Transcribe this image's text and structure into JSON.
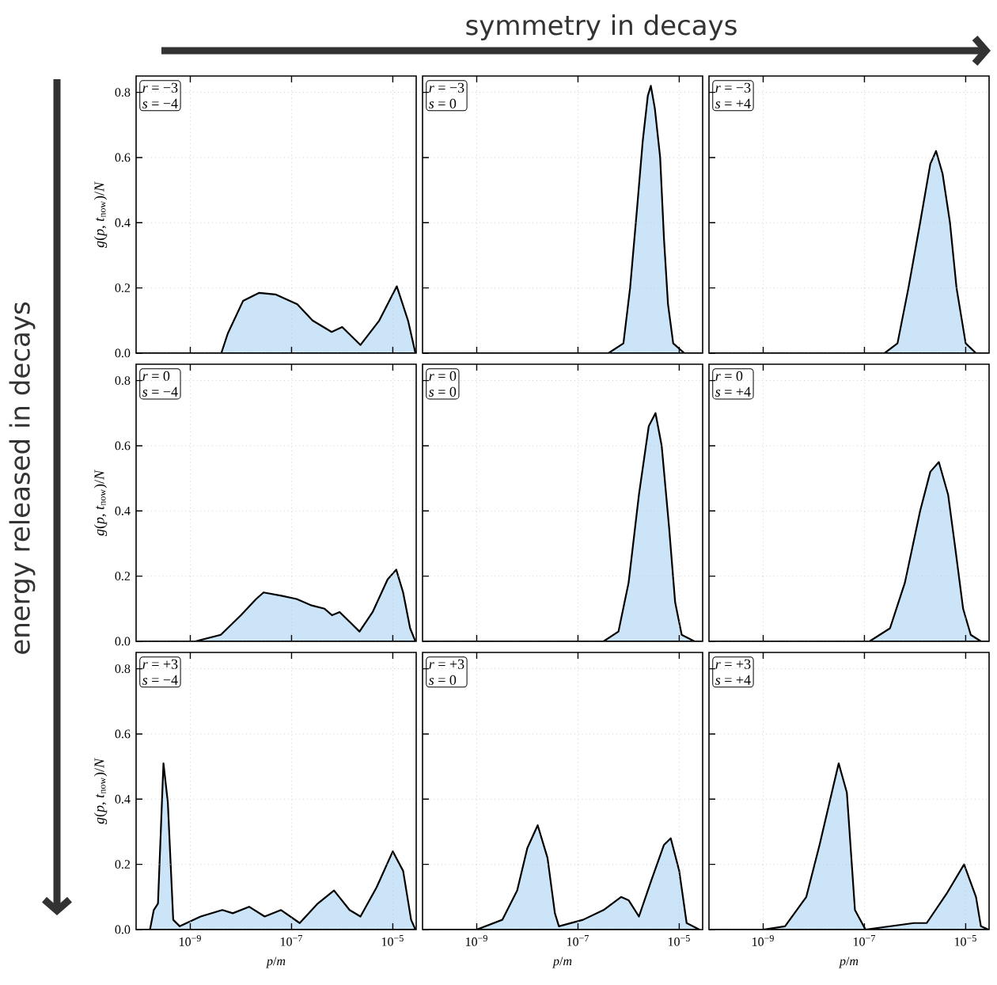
{
  "chart_data": [
    {
      "type": "area",
      "log": "x",
      "grid": true,
      "tick_labels": "y",
      "xlim": [
        8.5e-11,
        2.9e-05
      ],
      "xticks": [
        {
          "value": 1e-09,
          "label": null
        },
        {
          "value": 1e-07,
          "label": null
        },
        {
          "value": 1e-05,
          "label": null
        }
      ],
      "ylim": [
        0,
        0.85
      ],
      "yticks": [
        {
          "value": 0,
          "label": "0.0"
        },
        0.2,
        0.4,
        0.6,
        0.8
      ],
      "ylabel": "*g*(*p*, *t*$_{now}$)/*N*",
      "annotations": [
        "*r* = −3",
        "*s* = −4",
        "symmetry in decays",
        "energy released in decays"
      ],
      "series": [
        {
          "color": "#cce4f7",
          "x": [
            8.5e-11,
            4.1e-09,
            5.5e-09,
            1.1e-08,
            2.3e-08,
            4.8e-08,
            1.3e-07,
            2.6e-07,
            6.2e-07,
            1e-06,
            2.3e-06,
            5.4e-06,
            1.2e-05,
            2e-05,
            2.8e-05
          ],
          "values": [
            0,
            0,
            0.06,
            0.16,
            0.185,
            0.18,
            0.15,
            0.1,
            0.065,
            0.08,
            0.025,
            0.1,
            0.205,
            0.1,
            0
          ]
        }
      ]
    },
    {
      "type": "area",
      "log": "x",
      "grid": true,
      "tick_labels": false,
      "xlim": [
        8.5e-11,
        2.9e-05
      ],
      "xticks": [
        {
          "value": 1e-09,
          "label": null
        },
        {
          "value": 1e-07,
          "label": null
        },
        {
          "value": 1e-05,
          "label": null
        }
      ],
      "ylim": [
        0,
        0.85
      ],
      "yticks": [
        {
          "value": 0,
          "label": null
        },
        {
          "value": 0.2,
          "label": null
        },
        {
          "value": 0.4,
          "label": null
        },
        {
          "value": 0.6,
          "label": null
        },
        {
          "value": 0.8,
          "label": null
        }
      ],
      "annotations": [
        "*r* = −3",
        "*s* =   0"
      ],
      "series": [
        {
          "color": "#cce4f7",
          "x": [
            8.5e-11,
            4e-07,
            7.9e-07,
            1.07e-06,
            1.48e-06,
            1.9e-06,
            2.4e-06,
            2.75e-06,
            3.3e-06,
            4.2e-06,
            5e-06,
            6e-06,
            7.6e-06,
            1.26e-05,
            2.8e-05
          ],
          "values": [
            0,
            0,
            0.03,
            0.2,
            0.45,
            0.65,
            0.79,
            0.82,
            0.75,
            0.6,
            0.35,
            0.15,
            0.03,
            0,
            0
          ]
        }
      ]
    },
    {
      "type": "area",
      "log": "x",
      "grid": true,
      "tick_labels": false,
      "xlim": [
        8.5e-11,
        2.9e-05
      ],
      "xticks": [
        {
          "value": 1e-09,
          "label": null
        },
        {
          "value": 1e-07,
          "label": null
        },
        {
          "value": 1e-05,
          "label": null
        }
      ],
      "ylim": [
        0,
        0.85
      ],
      "yticks": [
        {
          "value": 0,
          "label": null
        },
        {
          "value": 0.2,
          "label": null
        },
        {
          "value": 0.4,
          "label": null
        },
        {
          "value": 0.6,
          "label": null
        },
        {
          "value": 0.8,
          "label": null
        }
      ],
      "annotations": [
        "*r* = −3",
        "*s* = +4"
      ],
      "series": [
        {
          "color": "#cce4f7",
          "x": [
            8.5e-11,
            2.5e-07,
            4.5e-07,
            7.4e-07,
            1.26e-06,
            2e-06,
            2.6e-06,
            3.5e-06,
            4.9e-06,
            6.6e-06,
            1e-05,
            1.6e-05,
            2.8e-05
          ],
          "values": [
            0,
            0,
            0.03,
            0.2,
            0.4,
            0.58,
            0.62,
            0.55,
            0.4,
            0.2,
            0.03,
            0,
            0
          ]
        }
      ]
    },
    {
      "type": "area",
      "log": "x",
      "grid": true,
      "tick_labels": "y",
      "xlim": [
        8.5e-11,
        2.9e-05
      ],
      "xticks": [
        {
          "value": 1e-09,
          "label": null
        },
        {
          "value": 1e-07,
          "label": null
        },
        {
          "value": 1e-05,
          "label": null
        }
      ],
      "ylim": [
        0,
        0.85
      ],
      "yticks": [
        {
          "value": 0,
          "label": "0.0"
        },
        0.2,
        0.4,
        0.6,
        0.8
      ],
      "ylabel": "*g*(*p*, *t*$_{now}$)/*N*",
      "annotations": [
        "*r* =   0",
        "*s* = −4"
      ],
      "series": [
        {
          "color": "#cce4f7",
          "x": [
            8.5e-11,
            1.26e-09,
            4e-09,
            1e-08,
            2e-08,
            2.8e-08,
            6.3e-08,
            1.26e-07,
            2.5e-07,
            4.5e-07,
            6.3e-07,
            8.9e-07,
            1.4e-06,
            2.2e-06,
            4e-06,
            7.9e-06,
            1.17e-05,
            1.6e-05,
            2.2e-05,
            2.8e-05
          ],
          "values": [
            0,
            0,
            0.02,
            0.08,
            0.13,
            0.15,
            0.14,
            0.13,
            0.11,
            0.1,
            0.08,
            0.09,
            0.06,
            0.03,
            0.09,
            0.19,
            0.22,
            0.15,
            0.04,
            0
          ]
        }
      ]
    },
    {
      "type": "area",
      "log": "x",
      "grid": true,
      "tick_labels": false,
      "xlim": [
        8.5e-11,
        2.9e-05
      ],
      "xticks": [
        {
          "value": 1e-09,
          "label": null
        },
        {
          "value": 1e-07,
          "label": null
        },
        {
          "value": 1e-05,
          "label": null
        }
      ],
      "ylim": [
        0,
        0.85
      ],
      "yticks": [
        {
          "value": 0,
          "label": null
        },
        {
          "value": 0.2,
          "label": null
        },
        {
          "value": 0.4,
          "label": null
        },
        {
          "value": 0.6,
          "label": null
        },
        {
          "value": 0.8,
          "label": null
        }
      ],
      "annotations": [
        "*r* =   0",
        "*s* =   0"
      ],
      "series": [
        {
          "color": "#cce4f7",
          "x": [
            8.5e-11,
            3.2e-07,
            6.3e-07,
            1e-06,
            1.6e-06,
            2.5e-06,
            3.4e-06,
            4.5e-06,
            6.3e-06,
            8.3e-06,
            1.12e-05,
            2e-05,
            2.8e-05
          ],
          "values": [
            0,
            0,
            0.03,
            0.18,
            0.45,
            0.66,
            0.7,
            0.6,
            0.35,
            0.12,
            0.02,
            0,
            0
          ]
        }
      ]
    },
    {
      "type": "area",
      "log": "x",
      "grid": true,
      "tick_labels": false,
      "xlim": [
        8.5e-11,
        2.9e-05
      ],
      "xticks": [
        {
          "value": 1e-09,
          "label": null
        },
        {
          "value": 1e-07,
          "label": null
        },
        {
          "value": 1e-05,
          "label": null
        }
      ],
      "ylim": [
        0,
        0.85
      ],
      "yticks": [
        {
          "value": 0,
          "label": null
        },
        {
          "value": 0.2,
          "label": null
        },
        {
          "value": 0.4,
          "label": null
        },
        {
          "value": 0.6,
          "label": null
        },
        {
          "value": 0.8,
          "label": null
        }
      ],
      "annotations": [
        "*r* =   0",
        "*s* = +4"
      ],
      "series": [
        {
          "color": "#cce4f7",
          "x": [
            8.5e-11,
            1.26e-07,
            3.2e-07,
            6.3e-07,
            1.26e-06,
            2e-06,
            2.95e-06,
            4.5e-06,
            6.3e-06,
            8.9e-06,
            1.26e-05,
            2e-05,
            2.8e-05
          ],
          "values": [
            0,
            0,
            0.04,
            0.18,
            0.4,
            0.52,
            0.55,
            0.45,
            0.28,
            0.1,
            0.02,
            0,
            0
          ]
        }
      ]
    },
    {
      "type": "area",
      "log": "x",
      "grid": true,
      "xlim": [
        8.5e-11,
        2.9e-05
      ],
      "xticks": [
        {
          "value": 1e-09,
          "label": "10$^{−9}$"
        },
        {
          "value": 1e-07,
          "label": "10$^{−7}$"
        },
        {
          "value": 1e-05,
          "label": "10$^{−5}$"
        }
      ],
      "ylim": [
        0,
        0.85
      ],
      "yticks": [
        {
          "value": 0,
          "label": "0.0"
        },
        0.2,
        0.4,
        0.6,
        0.8
      ],
      "xlabel": "*p*/*m*",
      "ylabel": "*g*(*p*, *t*$_{now}$)/*N*",
      "annotations": [
        "*r* = +3",
        "*s* = −4"
      ],
      "series": [
        {
          "color": "#cce4f7",
          "x": [
            8.5e-11,
            1.6e-10,
            1.9e-10,
            2.3e-10,
            2.95e-10,
            3.6e-10,
            4.6e-10,
            6.2e-10,
            1.6e-09,
            4.3e-09,
            6.9e-09,
            1.45e-08,
            2.95e-08,
            6.2e-08,
            1.45e-07,
            3.3e-07,
            6.9e-07,
            1.4e-06,
            2.3e-06,
            4.8e-06,
            1e-05,
            1.6e-05,
            2.3e-05,
            2.8e-05
          ],
          "values": [
            0,
            0,
            0.06,
            0.08,
            0.51,
            0.39,
            0.03,
            0.01,
            0.04,
            0.06,
            0.05,
            0.07,
            0.04,
            0.06,
            0.02,
            0.08,
            0.12,
            0.06,
            0.04,
            0.13,
            0.24,
            0.18,
            0.03,
            0
          ]
        }
      ]
    },
    {
      "type": "area",
      "log": "x",
      "grid": true,
      "tick_labels": "x",
      "xlim": [
        8.5e-11,
        2.9e-05
      ],
      "xticks": [
        {
          "value": 1e-09,
          "label": "10$^{−9}$"
        },
        {
          "value": 1e-07,
          "label": "10$^{−7}$"
        },
        {
          "value": 1e-05,
          "label": "10$^{−5}$"
        }
      ],
      "ylim": [
        0,
        0.85
      ],
      "yticks": [
        {
          "value": 0,
          "label": null
        },
        {
          "value": 0.2,
          "label": null
        },
        {
          "value": 0.4,
          "label": null
        },
        {
          "value": 0.6,
          "label": null
        },
        {
          "value": 0.8,
          "label": null
        }
      ],
      "xlabel": "*p*/*m*",
      "annotations": [
        "*r* = +3",
        "*s* =   0"
      ],
      "series": [
        {
          "color": "#cce4f7",
          "x": [
            8.5e-11,
            2.5e-10,
            1e-09,
            3.2e-09,
            6.3e-09,
            1e-08,
            1.6e-08,
            2.5e-08,
            3.5e-08,
            4.2e-08,
            1.26e-07,
            3.2e-07,
            7.1e-07,
            1e-06,
            1.6e-06,
            2.8e-06,
            5e-06,
            6.8e-06,
            1e-05,
            1.4e-05,
            2.5e-05
          ],
          "values": [
            0,
            0,
            0,
            0.03,
            0.12,
            0.25,
            0.32,
            0.22,
            0.05,
            0.01,
            0.03,
            0.06,
            0.1,
            0.09,
            0.04,
            0.15,
            0.26,
            0.28,
            0.18,
            0.02,
            0
          ]
        }
      ]
    },
    {
      "type": "area",
      "log": "x",
      "grid": true,
      "tick_labels": "x",
      "xlim": [
        8.5e-11,
        2.9e-05
      ],
      "xticks": [
        {
          "value": 1e-09,
          "label": "10$^{−9}$"
        },
        {
          "value": 1e-07,
          "label": "10$^{−7}$"
        },
        {
          "value": 1e-05,
          "label": "10$^{−5}$"
        }
      ],
      "ylim": [
        0,
        0.85
      ],
      "yticks": [
        {
          "value": 0,
          "label": null
        },
        {
          "value": 0.2,
          "label": null
        },
        {
          "value": 0.4,
          "label": null
        },
        {
          "value": 0.6,
          "label": null
        },
        {
          "value": 0.8,
          "label": null
        }
      ],
      "xlabel": "*p*/*m*",
      "annotations": [
        "*r* = +3",
        "*s* = +4"
      ],
      "series": [
        {
          "color": "#cce4f7",
          "x": [
            8.5e-11,
            1e-09,
            2.7e-09,
            7.1e-09,
            1.3e-08,
            3.1e-08,
            4.5e-08,
            6.5e-08,
            1.05e-07,
            9.5e-07,
            1.7e-06,
            4.2e-06,
            9.3e-06,
            1.6e-05,
            2e-05,
            2.8e-05
          ],
          "values": [
            0,
            0,
            0.01,
            0.1,
            0.26,
            0.51,
            0.42,
            0.06,
            0,
            0.02,
            0.02,
            0.11,
            0.2,
            0.1,
            0.01,
            0
          ]
        }
      ]
    }
  ]
}
